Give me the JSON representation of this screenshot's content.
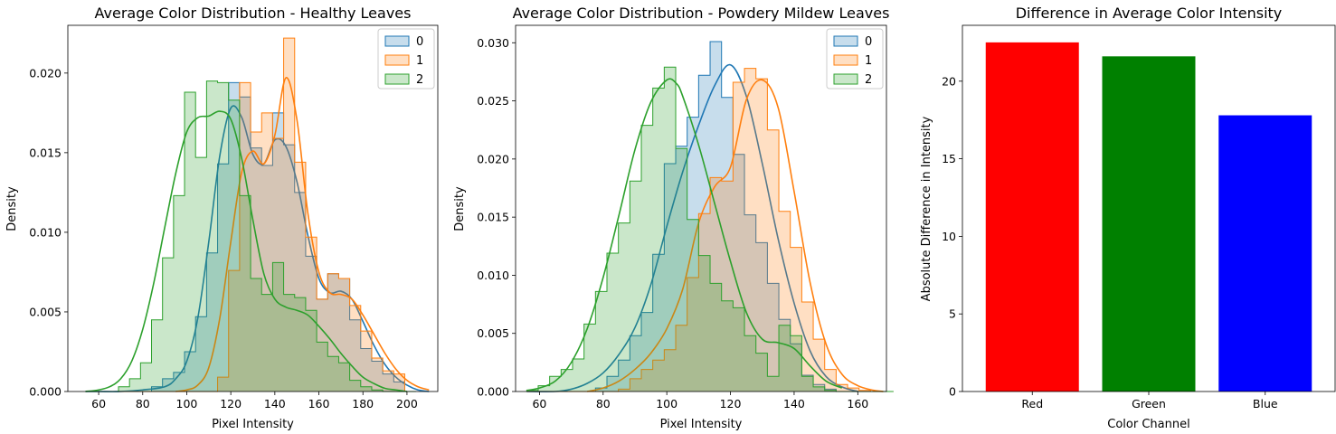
{
  "chart_data": [
    {
      "type": "histogram",
      "title": "Average Color Distribution - Healthy Leaves",
      "xlabel": "Pixel Intensity",
      "ylabel": "Density",
      "xlim": [
        46,
        214
      ],
      "ylim": [
        0,
        0.023
      ],
      "xticks": [
        "60",
        "80",
        "100",
        "120",
        "140",
        "160",
        "180",
        "200"
      ],
      "yticks": [
        "0.000",
        "0.005",
        "0.010",
        "0.015",
        "0.020"
      ],
      "legend_position": "top-right",
      "element": "step",
      "kde": true,
      "bin_width": 5,
      "series": [
        {
          "name": "0",
          "color": "#1f77b4",
          "bins_start": 54,
          "values": [
            0,
            0,
            0,
            0,
            0,
            0,
            0.0003,
            0.0008,
            0.0012,
            0.0025,
            0.0047,
            0.0087,
            0.0143,
            0.0194,
            0.0185,
            0.0153,
            0.0142,
            0.0175,
            0.0155,
            0.0125,
            0.0085,
            0.0058,
            0.0074,
            0.0071,
            0.0045,
            0.0027,
            0.0019,
            0.0011,
            0.0006,
            0
          ],
          "kde_x": [
            54,
            60,
            70,
            80,
            90,
            95,
            100,
            105,
            110,
            115,
            120,
            125,
            130,
            135,
            140,
            145,
            150,
            155,
            160,
            165,
            170,
            175,
            180,
            185,
            190,
            195,
            200,
            205,
            210
          ],
          "kde_y": [
            0,
            0,
            0,
            0.0001,
            0.0003,
            0.0008,
            0.0019,
            0.0046,
            0.0094,
            0.0148,
            0.0178,
            0.0172,
            0.0149,
            0.0143,
            0.0158,
            0.0154,
            0.0132,
            0.0098,
            0.0071,
            0.0062,
            0.0063,
            0.0058,
            0.0044,
            0.0029,
            0.0017,
            0.0009,
            0.0004,
            0.0001,
            0
          ]
        },
        {
          "name": "1",
          "color": "#ff7f0e",
          "bins_start": 54,
          "values": [
            0,
            0,
            0,
            0,
            0,
            0,
            0,
            0,
            0,
            0,
            0,
            0,
            0.0009,
            0.0076,
            0.0194,
            0.0163,
            0.0175,
            0.0159,
            0.0222,
            0.0144,
            0.0097,
            0.0058,
            0.0074,
            0.0071,
            0.0054,
            0.0038,
            0.0021,
            0.0013,
            0.0011,
            0
          ],
          "kde_x": [
            95,
            100,
            105,
            110,
            115,
            120,
            125,
            130,
            135,
            140,
            145,
            150,
            155,
            160,
            165,
            170,
            175,
            180,
            185,
            190,
            195,
            200,
            205,
            210
          ],
          "kde_y": [
            0,
            0.0001,
            0.0004,
            0.0015,
            0.0046,
            0.0094,
            0.0138,
            0.0151,
            0.0143,
            0.0161,
            0.0197,
            0.0171,
            0.0112,
            0.0075,
            0.0062,
            0.0061,
            0.0058,
            0.0048,
            0.0036,
            0.0024,
            0.0014,
            0.0007,
            0.0003,
            0.0001
          ]
        },
        {
          "name": "2",
          "color": "#2ca02c",
          "bins_start": 54,
          "values": [
            0,
            0,
            0,
            0.0003,
            0.0008,
            0.0018,
            0.0045,
            0.0084,
            0.0123,
            0.0188,
            0.0147,
            0.0195,
            0.0194,
            0.0183,
            0.0123,
            0.0071,
            0.0061,
            0.0081,
            0.0061,
            0.0059,
            0.0051,
            0.0031,
            0.0022,
            0.0018,
            0.0007,
            0.0003,
            0.0001,
            0,
            0,
            0
          ],
          "kde_x": [
            54,
            60,
            65,
            70,
            75,
            80,
            85,
            90,
            95,
            100,
            105,
            110,
            115,
            120,
            125,
            130,
            135,
            140,
            145,
            150,
            155,
            160,
            165,
            170,
            175,
            180,
            185,
            190,
            195,
            200
          ],
          "kde_y": [
            0,
            0.0001,
            0.0003,
            0.0008,
            0.0019,
            0.0039,
            0.0068,
            0.0103,
            0.0137,
            0.0163,
            0.0172,
            0.0173,
            0.0176,
            0.0171,
            0.0146,
            0.0108,
            0.0074,
            0.0058,
            0.0053,
            0.0051,
            0.0048,
            0.0041,
            0.0033,
            0.0024,
            0.0016,
            0.0009,
            0.0005,
            0.0002,
            0.0001,
            0
          ]
        }
      ]
    },
    {
      "type": "histogram",
      "title": "Average Color Distribution - Powdery Mildew Leaves",
      "xlabel": "Pixel Intensity",
      "ylabel": "Density",
      "xlim": [
        52.5,
        169
      ],
      "ylim": [
        0,
        0.0315
      ],
      "xticks": [
        "60",
        "80",
        "100",
        "120",
        "140",
        "160"
      ],
      "yticks": [
        "0.000",
        "0.005",
        "0.010",
        "0.015",
        "0.020",
        "0.025",
        "0.030"
      ],
      "legend_position": "top-right",
      "element": "step",
      "kde": true,
      "bin_width": 3.6,
      "series": [
        {
          "name": "0",
          "color": "#1f77b4",
          "bins_start": 56,
          "values": [
            0,
            0,
            0,
            0,
            0,
            0,
            0.0003,
            0.0013,
            0.0027,
            0.0048,
            0.0068,
            0.0118,
            0.0196,
            0.0211,
            0.0236,
            0.0272,
            0.0301,
            0.0253,
            0.0204,
            0.0152,
            0.0128,
            0.0093,
            0.0062,
            0.0041,
            0.0014,
            0.0006,
            0.0002,
            0,
            0,
            0,
            0,
            0
          ],
          "kde_x": [
            56,
            65,
            70,
            75,
            80,
            85,
            90,
            95,
            100,
            105,
            110,
            115,
            120,
            125,
            130,
            135,
            140,
            145,
            150,
            155,
            160
          ],
          "kde_y": [
            0,
            0,
            0.0002,
            0.0007,
            0.0016,
            0.0032,
            0.0055,
            0.0092,
            0.0142,
            0.0189,
            0.0229,
            0.0263,
            0.0281,
            0.0254,
            0.0196,
            0.0131,
            0.0076,
            0.0035,
            0.0013,
            0.0004,
            0
          ]
        },
        {
          "name": "1",
          "color": "#ff7f0e",
          "bins_start": 56,
          "values": [
            0,
            0,
            0,
            0,
            0,
            0,
            0,
            0,
            0.0002,
            0.0011,
            0.0019,
            0.0027,
            0.0036,
            0.0057,
            0.0098,
            0.0153,
            0.0184,
            0.0181,
            0.0266,
            0.0278,
            0.0269,
            0.0225,
            0.0155,
            0.0124,
            0.0077,
            0.0045,
            0.0019,
            0.0006,
            0.0003,
            0.0001,
            0,
            0
          ],
          "kde_x": [
            75,
            80,
            85,
            90,
            95,
            100,
            105,
            110,
            115,
            120,
            125,
            130,
            135,
            140,
            145,
            150,
            155,
            160,
            165,
            168
          ],
          "kde_y": [
            0,
            0.0003,
            0.0009,
            0.0019,
            0.0033,
            0.0054,
            0.0088,
            0.0145,
            0.0176,
            0.0193,
            0.0251,
            0.0268,
            0.0244,
            0.0172,
            0.0094,
            0.0041,
            0.0015,
            0.0005,
            0.0001,
            0
          ]
        },
        {
          "name": "2",
          "color": "#2ca02c",
          "bins_start": 56,
          "values": [
            0.0001,
            0.0005,
            0.0013,
            0.0019,
            0.0028,
            0.0058,
            0.0086,
            0.0119,
            0.0145,
            0.0181,
            0.0229,
            0.0261,
            0.0279,
            0.0209,
            0.0148,
            0.0117,
            0.0093,
            0.0078,
            0.0072,
            0.0048,
            0.0033,
            0.0013,
            0.0057,
            0.0048,
            0.0013,
            0.0004,
            0.0001,
            0,
            0,
            0,
            0,
            0
          ],
          "kde_x": [
            56,
            60,
            65,
            70,
            75,
            80,
            85,
            90,
            95,
            100,
            103,
            105,
            110,
            115,
            120,
            125,
            130,
            135,
            140,
            145,
            150,
            155
          ],
          "kde_y": [
            0.0001,
            0.0003,
            0.0009,
            0.0025,
            0.0054,
            0.0098,
            0.0152,
            0.0208,
            0.0249,
            0.0268,
            0.0265,
            0.0254,
            0.0212,
            0.0162,
            0.0112,
            0.0068,
            0.0045,
            0.0042,
            0.0037,
            0.0022,
            0.0009,
            0.0003
          ]
        }
      ]
    },
    {
      "type": "bar",
      "title": "Difference in Average Color Intensity",
      "xlabel": "Color Channel",
      "ylabel": "Absolute Difference in Intensity",
      "categories": [
        "Red",
        "Green",
        "Blue"
      ],
      "values": [
        22.5,
        21.6,
        17.8
      ],
      "colors": [
        "#ff0000",
        "#008000",
        "#0000ff"
      ],
      "ylim": [
        0,
        23.6
      ],
      "yticks": [
        "0",
        "5",
        "10",
        "15",
        "20"
      ]
    }
  ]
}
